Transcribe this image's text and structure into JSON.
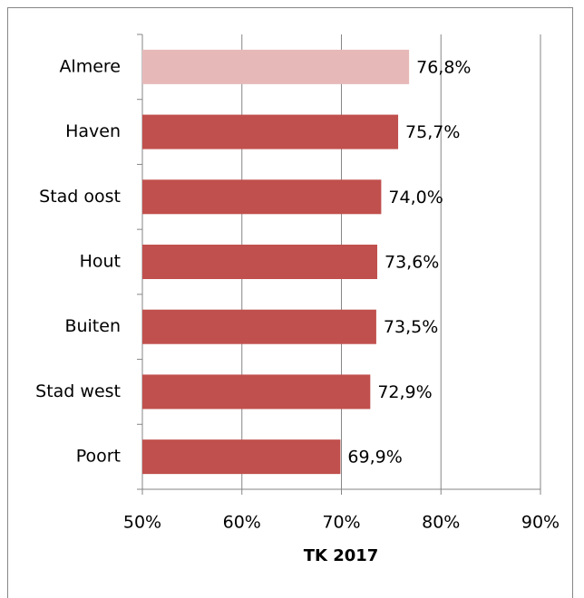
{
  "chart_data": {
    "type": "bar",
    "orientation": "horizontal",
    "categories": [
      "Almere",
      "Haven",
      "Stad oost",
      "Hout",
      "Buiten",
      "Stad west",
      "Poort"
    ],
    "values": [
      76.8,
      75.7,
      74.0,
      73.6,
      73.5,
      72.9,
      69.9
    ],
    "value_labels": [
      "76,8%",
      "75,7%",
      "74,0%",
      "73,6%",
      "73,5%",
      "72,9%",
      "69,9%"
    ],
    "colors": [
      "#e6b9b8",
      "#c0504d",
      "#c0504d",
      "#c0504d",
      "#c0504d",
      "#c0504d",
      "#c0504d"
    ],
    "xlim": [
      50,
      90
    ],
    "xticks": [
      {
        "value": 50,
        "label": "50%"
      },
      {
        "value": 60,
        "label": "60%"
      },
      {
        "value": 70,
        "label": "70%"
      },
      {
        "value": 80,
        "label": "80%"
      },
      {
        "value": 90,
        "label": "90%"
      }
    ],
    "xlabel": "TK 2017",
    "grid": true
  }
}
